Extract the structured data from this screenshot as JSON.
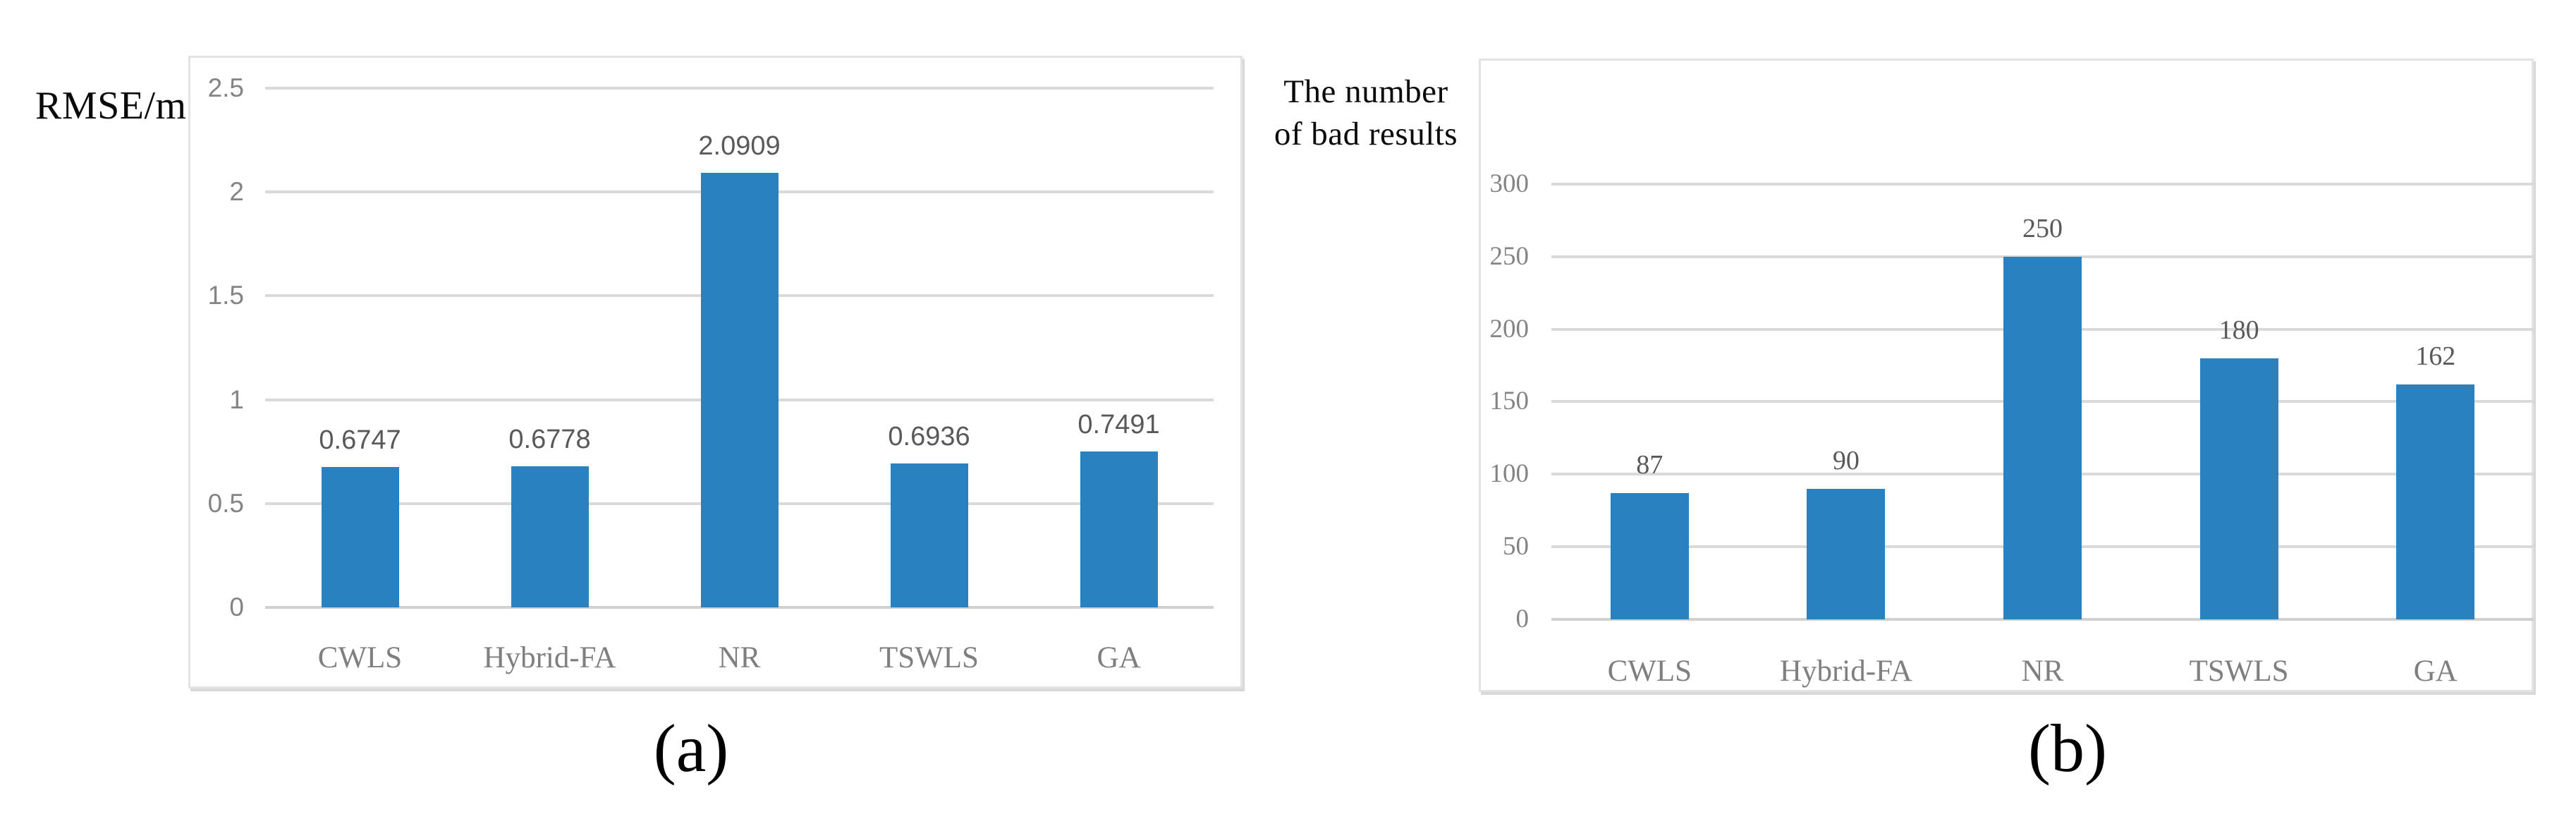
{
  "figure": {
    "captions": {
      "a": "(a)",
      "b": "(b)"
    }
  },
  "chart_data": [
    {
      "type": "bar",
      "panel": "a",
      "title": "RMSE/m",
      "categories": [
        "CWLS",
        "Hybrid-FA",
        "NR",
        "TSWLS",
        "GA"
      ],
      "values": [
        0.6747,
        0.6778,
        2.0909,
        0.6936,
        0.7491
      ],
      "data_labels": [
        "0.6747",
        "0.6778",
        "2.0909",
        "0.6936",
        "0.7491"
      ],
      "ylim": [
        0,
        2.5
      ],
      "ytick_step": 0.5,
      "yticks": [
        "0",
        "0.5",
        "1",
        "1.5",
        "2",
        "2.5"
      ],
      "grid": true,
      "legend": "none",
      "bar_color": "#2a81c0",
      "caption": "(a)"
    },
    {
      "type": "bar",
      "panel": "b",
      "title": "The number of bad results",
      "title_lines": [
        "The number",
        "of bad results"
      ],
      "categories": [
        "CWLS",
        "Hybrid-FA",
        "NR",
        "TSWLS",
        "GA"
      ],
      "values": [
        87,
        90,
        250,
        180,
        162
      ],
      "data_labels": [
        "87",
        "90",
        "250",
        "180",
        "162"
      ],
      "ylim": [
        0,
        300
      ],
      "ytick_step": 50,
      "yticks": [
        "0",
        "50",
        "100",
        "150",
        "200",
        "250",
        "300"
      ],
      "grid": true,
      "legend": "none",
      "bar_color": "#2a81c0",
      "caption": "(b)"
    }
  ],
  "colors": {
    "bar": "#2a81c0",
    "gridline": "#dadada",
    "axis_line": "#d0d0d0",
    "tick_text": "#848484",
    "data_label_text": "#595959",
    "title_text": "#0a0a0a"
  }
}
